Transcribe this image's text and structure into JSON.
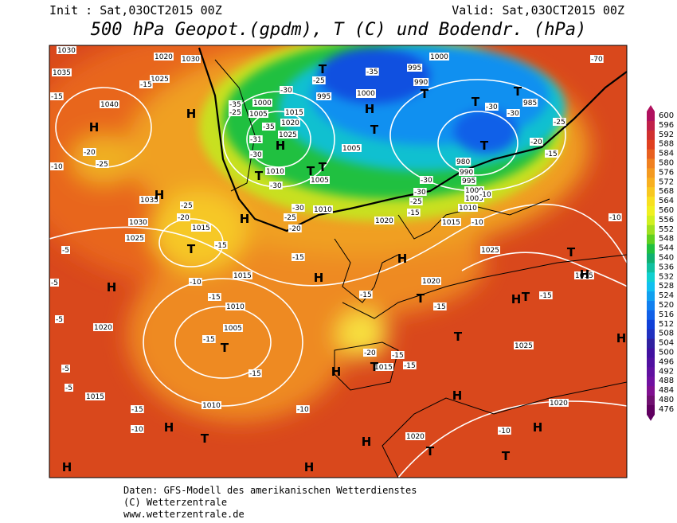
{
  "header": {
    "init": "Init : Sat,03OCT2015 00Z",
    "valid": "Valid: Sat,03OCT2015 00Z",
    "title": "500 hPa Geopot.(gpdm), T (C) und Bodendr. (hPa)"
  },
  "colorbar": {
    "labels": [
      "600",
      "596",
      "592",
      "588",
      "584",
      "580",
      "576",
      "572",
      "568",
      "564",
      "560",
      "556",
      "552",
      "548",
      "544",
      "540",
      "536",
      "532",
      "528",
      "524",
      "520",
      "516",
      "512",
      "508",
      "504",
      "500",
      "496",
      "492",
      "488",
      "484",
      "480",
      "476"
    ]
  },
  "map": {
    "pressure_labels": [
      "1030",
      "1035",
      "1040",
      "1020",
      "1030",
      "1025",
      "1000",
      "1005",
      "1015",
      "1020",
      "1025",
      "995",
      "1000",
      "1005",
      "1010",
      "1005",
      "1010",
      "995",
      "990",
      "1000",
      "1000",
      "985",
      "980",
      "990",
      "995",
      "1000",
      "1005",
      "1010",
      "1015",
      "1020",
      "1035",
      "1030",
      "1025",
      "1015",
      "1015",
      "1010",
      "1005",
      "1020",
      "1025",
      "1015",
      "1025",
      "1020",
      "1015",
      "1010",
      "1020",
      "1020",
      "1015"
    ],
    "temperature_labels": [
      "-15",
      "-15",
      "-20",
      "-25",
      "-10",
      "-25",
      "-20",
      "-15",
      "-10",
      "-15",
      "-15",
      "-15",
      "-15",
      "-15",
      "-15",
      "-15",
      "-20",
      "-15",
      "-15",
      "-5",
      "-5",
      "-5",
      "-5",
      "-5",
      "-15",
      "-10",
      "-10",
      "-10",
      "-35",
      "-30",
      "-35",
      "-25",
      "-35",
      "-30",
      "-31",
      "-30",
      "-25",
      "-20",
      "-30",
      "-30",
      "-30",
      "-25",
      "-30",
      "-30",
      "-25",
      "-20",
      "-15",
      "-10",
      "-10",
      "-15",
      "-10",
      "-70",
      "-25"
    ],
    "centers": [
      "H",
      "H",
      "H",
      "T",
      "T",
      "T",
      "H",
      "T",
      "T",
      "T",
      "T",
      "T",
      "H",
      "T",
      "H",
      "T",
      "H",
      "T",
      "H",
      "H",
      "T",
      "T",
      "H",
      "T",
      "H",
      "H",
      "H",
      "T",
      "H",
      "T",
      "H",
      "H",
      "T",
      "H",
      "T",
      "H",
      "T",
      "H"
    ]
  },
  "footer": {
    "line1": "Daten: GFS-Modell des amerikanischen Wetterdienstes",
    "line2": "(C) Wetterzentrale",
    "line3": "www.wetterzentrale.de"
  }
}
